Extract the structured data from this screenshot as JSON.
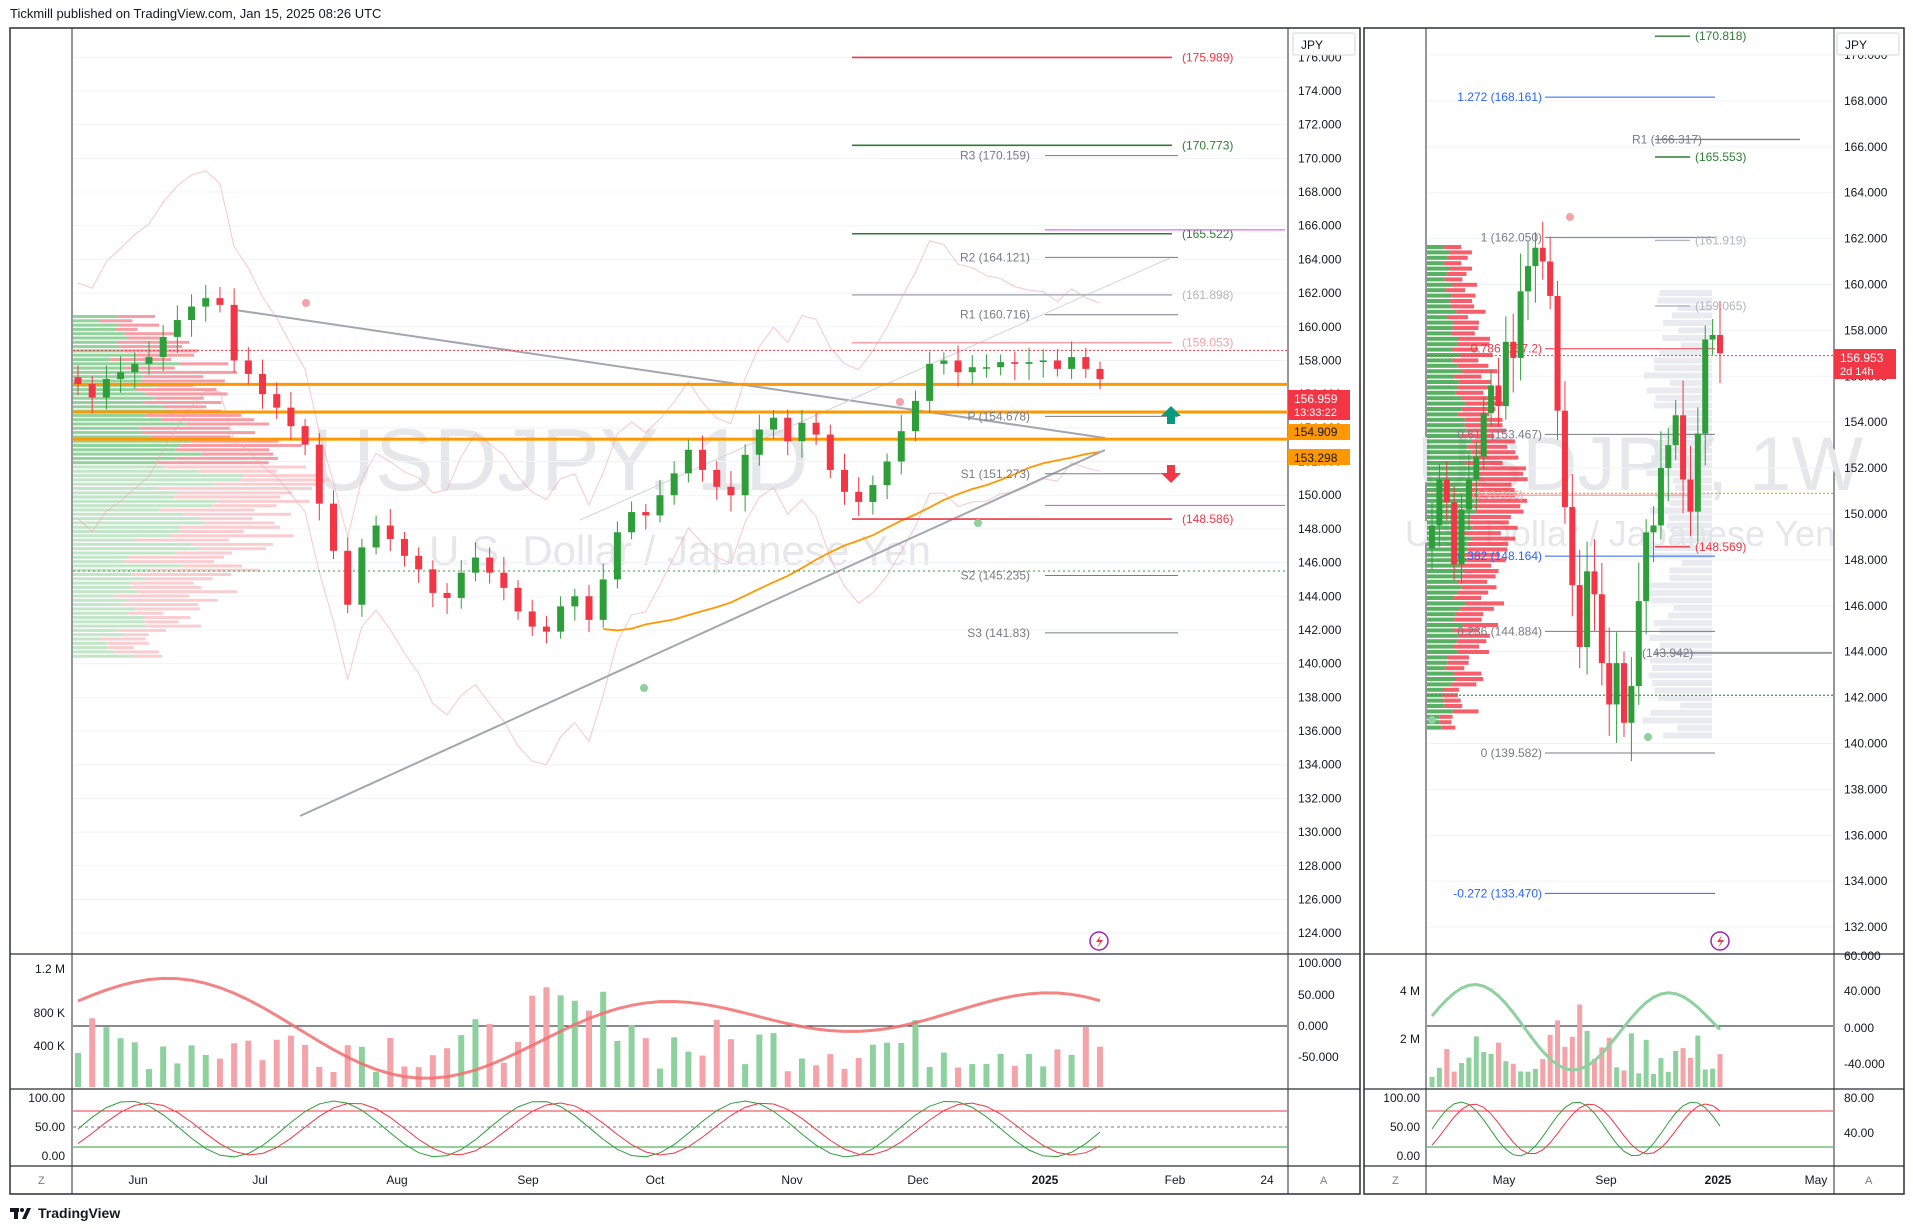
{
  "header": {
    "attribution": "Tickmill published on TradingView.com, Jan 15, 2025 08:26 UTC"
  },
  "footer": {
    "brand": "TradingView",
    "logo_icon": "tradingview-logo-icon"
  },
  "colors": {
    "up": "#26a69a",
    "candle_up": "#2e9e3b",
    "candle_down": "#f23645",
    "volume_up": "#8fd19e",
    "volume_down": "#f4a3a8",
    "orange": "#ff9800",
    "grid": "#e0e3eb"
  },
  "left_chart": {
    "watermark_symbol": "USDJPY, 1D",
    "watermark_name": "U.S. Dollar / Japanese Yen",
    "currency_label": "JPY",
    "y_ticks": [
      "176.000",
      "174.000",
      "172.000",
      "170.000",
      "168.000",
      "166.000",
      "164.000",
      "162.000",
      "160.000",
      "158.000",
      "156.000",
      "154.000",
      "152.000",
      "150.000",
      "148.000",
      "146.000",
      "144.000",
      "142.000",
      "140.000",
      "138.000",
      "136.000",
      "134.000",
      "132.000",
      "130.000",
      "128.000",
      "126.000",
      "124.000"
    ],
    "x_ticks": [
      "Jun",
      "Jul",
      "Aug",
      "Sep",
      "Oct",
      "Nov",
      "Dec",
      "2025",
      "Feb",
      "24"
    ],
    "price_badges": {
      "last": "156.959",
      "countdown": "13:33:22",
      "level1": "154.909",
      "level2": "153.298"
    },
    "levels": [
      {
        "label": "(175.989)",
        "value": 175.989,
        "color": "#f23645"
      },
      {
        "label": "(170.773)",
        "value": 170.773,
        "color": "#2e7d32"
      },
      {
        "label": "(165.522)",
        "value": 165.522,
        "color": "#2e7d32"
      },
      {
        "label": "(161.898)",
        "value": 161.898,
        "color": "#b2b5be"
      },
      {
        "label": "(159.053)",
        "value": 159.053,
        "color": "#f4a3a8"
      },
      {
        "label": "(148.586)",
        "value": 148.586,
        "color": "#f23645"
      }
    ],
    "pivots": [
      {
        "label": "R3 (170.159)",
        "value": 170.159
      },
      {
        "label": "R2 (164.121)",
        "value": 164.121
      },
      {
        "label": "R1 (160.716)",
        "value": 160.716
      },
      {
        "label": "P (154.678)",
        "value": 154.678
      },
      {
        "label": "S1 (151.273)",
        "value": 151.273
      },
      {
        "label": "S2 (145.235)",
        "value": 145.235
      },
      {
        "label": "S3 (141.83)",
        "value": 141.83
      }
    ],
    "volume_ticks": [
      "1.2 M",
      "800 K",
      "400 K"
    ],
    "osc_ticks": [
      "100.000",
      "50.000",
      "0.000",
      "-50.000"
    ],
    "stoch_ticks": [
      "100.00",
      "50.00",
      "0.00"
    ]
  },
  "right_chart": {
    "watermark_symbol": "USDJPY, 1W",
    "watermark_name": "U.S. Dollar / Japanese Yen",
    "currency_label": "JPY",
    "y_ticks": [
      "170.000",
      "168.000",
      "166.000",
      "164.000",
      "162.000",
      "160.000",
      "158.000",
      "156.000",
      "154.000",
      "152.000",
      "150.000",
      "148.000",
      "146.000",
      "144.000",
      "142.000",
      "140.000",
      "138.000",
      "136.000",
      "134.000",
      "132.000"
    ],
    "x_ticks": [
      "May",
      "Sep",
      "2025",
      "May"
    ],
    "price_badges": {
      "last": "156.953",
      "countdown": "2d 14h"
    },
    "fib_labels": [
      "1.272 (168.161)",
      "1 (162.050)",
      "0.786 (157.2)",
      "0.618 (153.467)",
      "0.382 (148.164)",
      "0.236 (144.884)",
      "0 (139.582)",
      "-0.272 (133.470)"
    ],
    "level_labels": [
      "(170.818)",
      "R1 (166.317)",
      "(165.553)",
      "(161.919)",
      "(159.065)",
      "(148.569)",
      "(143.942)",
      "(150.816)"
    ],
    "volume_ticks": [
      "4 M",
      "2 M"
    ],
    "osc_ticks": [
      "60.000",
      "40.000",
      "0.000",
      "-40.000"
    ],
    "stoch_ticks": [
      "100.00",
      "50.00",
      "0.00"
    ],
    "stoch_right_ticks": [
      "80.00",
      "40.00"
    ]
  },
  "chart_data": [
    {
      "type": "candlestick",
      "title": "USDJPY, 1D",
      "ylim": [
        123,
        177.5
      ],
      "x_ticks": [
        "Jun",
        "Jul",
        "Aug",
        "Sep",
        "Oct",
        "Nov",
        "Dec",
        "2025",
        "Feb",
        "24"
      ],
      "close_path": [
        156.6,
        155.8,
        156.9,
        157.3,
        157.8,
        158.2,
        159.4,
        160.4,
        161.2,
        161.7,
        161.3,
        158.0,
        157.2,
        156.0,
        155.2,
        154.1,
        153.0,
        149.5,
        146.7,
        143.5,
        146.9,
        148.2,
        147.4,
        146.4,
        145.6,
        144.2,
        143.9,
        145.4,
        146.3,
        145.4,
        144.5,
        143.1,
        142.2,
        141.9,
        143.4,
        144.0,
        142.6,
        145.0,
        147.8,
        149.0,
        148.8,
        150.0,
        151.3,
        152.7,
        151.5,
        150.5,
        150.0,
        152.4,
        153.9,
        154.6,
        153.2,
        154.3,
        153.6,
        151.5,
        150.2,
        149.6,
        150.6,
        152.0,
        153.8,
        155.6,
        157.8,
        158.0,
        157.3,
        157.6,
        157.6,
        157.9,
        157.8,
        157.9,
        158.0,
        157.5,
        158.2,
        157.5,
        156.9
      ],
      "indicators": [
        "volume profile",
        "volume",
        "oscillator",
        "stochastic RSI"
      ]
    },
    {
      "type": "candlestick",
      "title": "USDJPY, 1W",
      "ylim": [
        131,
        171
      ],
      "x_ticks": [
        "May",
        "Sep",
        "2025",
        "May"
      ],
      "close_path": [
        149.5,
        151.5,
        150.5,
        147.8,
        150.2,
        151.5,
        152.5,
        154.4,
        155.6,
        154.7,
        157.5,
        156.8,
        159.7,
        160.8,
        161.6,
        161.0,
        159.5,
        154.5,
        150.3,
        146.9,
        144.2,
        147.5,
        146.5,
        143.5,
        141.7,
        143.5,
        140.9,
        142.5,
        146.2,
        149.2,
        149.5,
        152.0,
        153.0,
        154.3,
        151.5,
        150.1,
        153.5,
        157.6,
        157.8,
        157.0
      ]
    }
  ]
}
